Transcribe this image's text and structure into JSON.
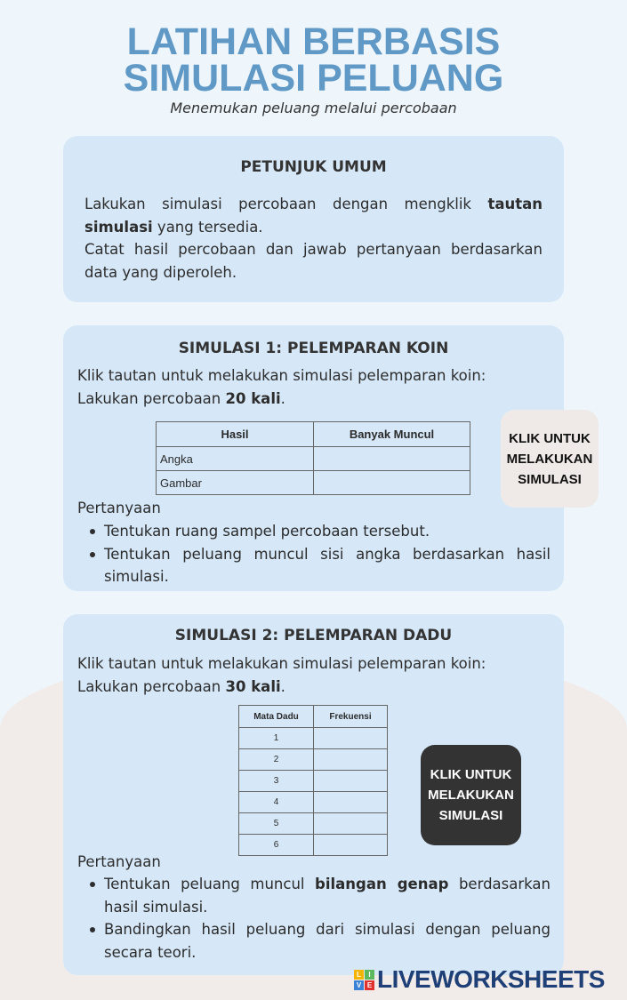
{
  "header": {
    "title_line1": "LATIHAN BERBASIS",
    "title_line2": "SIMULASI PELUANG",
    "subtitle": "Menemukan peluang melalui percobaan"
  },
  "general": {
    "heading": "PETUNJUK UMUM",
    "p1_a": "Lakukan simulasi percobaan dengan mengklik ",
    "p1_bold": "tautan simulasi",
    "p1_b": " yang tersedia.",
    "p2": "Catat hasil percobaan dan jawab pertanyaan berdasarkan data yang diperoleh."
  },
  "sim1": {
    "heading": "SIMULASI 1: PELEMPARAN KOIN",
    "intro": "Klik tautan untuk melakukan simulasi pelemparan koin:",
    "trial_a": "Lakukan percobaan ",
    "trial_bold": "20 kali",
    "trial_b": ".",
    "table": {
      "headers": [
        "Hasil",
        "Banyak Muncul"
      ],
      "rows": [
        [
          "Angka",
          ""
        ],
        [
          "Gambar",
          ""
        ]
      ]
    },
    "button": "KLIK UNTUK MELAKUKAN SIMULASI",
    "button_color": "#efeae7",
    "questions_label": "Pertanyaan",
    "q1": "Tentukan ruang sampel percobaan tersebut.",
    "q2": "Tentukan peluang muncul sisi angka berdasarkan hasil simulasi."
  },
  "sim2": {
    "heading": "SIMULASI 2: PELEMPARAN DADU",
    "intro": "Klik tautan untuk melakukan simulasi pelemparan koin:",
    "trial_a": "Lakukan percobaan ",
    "trial_bold": "30 kali",
    "trial_b": ".",
    "table": {
      "headers": [
        "Mata Dadu",
        "Frekuensi"
      ],
      "rows": [
        [
          "1",
          ""
        ],
        [
          "2",
          ""
        ],
        [
          "3",
          ""
        ],
        [
          "4",
          ""
        ],
        [
          "5",
          ""
        ],
        [
          "6",
          ""
        ]
      ]
    },
    "button": "KLIK UNTUK MELAKUKAN SIMULASI",
    "button_color": "#333333",
    "questions_label": "Pertanyaan",
    "q1_a": "Tentukan peluang muncul ",
    "q1_bold": "bilangan genap",
    "q1_b": " berdasarkan hasil simulasi.",
    "q2": "Bandingkan hasil peluang dari simulasi dengan peluang secara teori."
  },
  "footer": {
    "logo_text": "LIVEWORKSHEETS",
    "logo_letters": [
      "L",
      "I",
      "V",
      "E"
    ]
  },
  "colors": {
    "title": "#6199c6",
    "card": "#d6e8f8",
    "logo": "#1f3f77"
  }
}
